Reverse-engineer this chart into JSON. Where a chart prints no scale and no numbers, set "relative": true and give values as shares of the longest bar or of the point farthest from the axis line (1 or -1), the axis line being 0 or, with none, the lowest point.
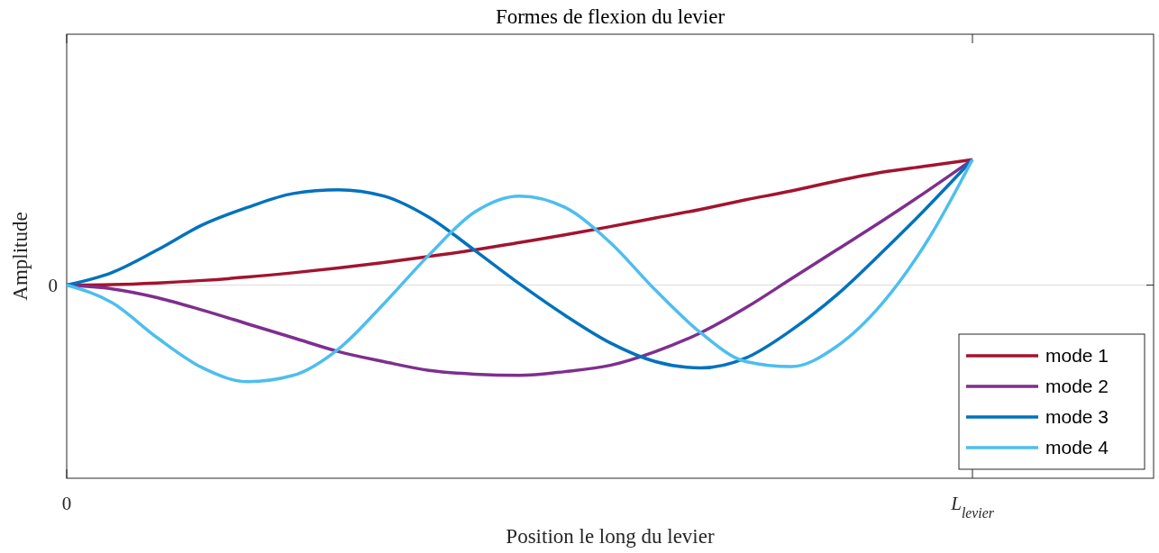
{
  "chart_data": {
    "type": "line",
    "title": "Formes de flexion du levier",
    "xlabel": "Position le long du levier",
    "ylabel": "Amplitude",
    "relative": true,
    "categories": [
      "0",
      null,
      null,
      null,
      null,
      null,
      null,
      null,
      null,
      null,
      null,
      null,
      null,
      null,
      null,
      null,
      null,
      null,
      null,
      null,
      "L$_{levier}$",
      null,
      null,
      null,
      null
    ],
    "legend": "bottom right",
    "line_style": "solid",
    "marker": "none",
    "ref_lines": [
      {
        "axis": "y",
        "value": 0,
        "label": "0",
        "color": "#dddddd"
      }
    ],
    "series": [
      {
        "name": "mode 1",
        "color": "#a2142f",
        "values": [
          0,
          0.004,
          0.017,
          0.037,
          0.064,
          0.098,
          0.136,
          0.18,
          0.229,
          0.28,
          0.34,
          0.4,
          0.466,
          0.535,
          0.604,
          0.68,
          0.75,
          0.83,
          0.9,
          0.95,
          1,
          null,
          null,
          null,
          null
        ]
      },
      {
        "name": "mode 2",
        "color": "#7e2f8e",
        "values": [
          0,
          -0.03,
          -0.1,
          -0.2,
          -0.31,
          -0.42,
          -0.53,
          -0.61,
          -0.68,
          -0.71,
          -0.72,
          -0.69,
          -0.64,
          -0.53,
          -0.38,
          -0.18,
          0.05,
          0.28,
          0.51,
          0.75,
          1,
          null,
          null,
          null,
          null
        ]
      },
      {
        "name": "mode 3",
        "color": "#0072bd",
        "values": [
          0,
          0.1,
          0.28,
          0.48,
          0.62,
          0.73,
          0.76,
          0.71,
          0.54,
          0.28,
          0.01,
          -0.24,
          -0.46,
          -0.61,
          -0.66,
          -0.58,
          -0.36,
          -0.08,
          0.26,
          0.62,
          1,
          null,
          null,
          null,
          null
        ]
      },
      {
        "name": "mode 4",
        "color": "#4dbeee",
        "values": [
          0,
          -0.14,
          -0.42,
          -0.66,
          -0.77,
          -0.72,
          -0.51,
          -0.15,
          0.24,
          0.58,
          0.71,
          0.62,
          0.34,
          -0.04,
          -0.38,
          -0.61,
          -0.65,
          -0.49,
          -0.15,
          0.35,
          1,
          null,
          null,
          null,
          null
        ]
      }
    ]
  }
}
